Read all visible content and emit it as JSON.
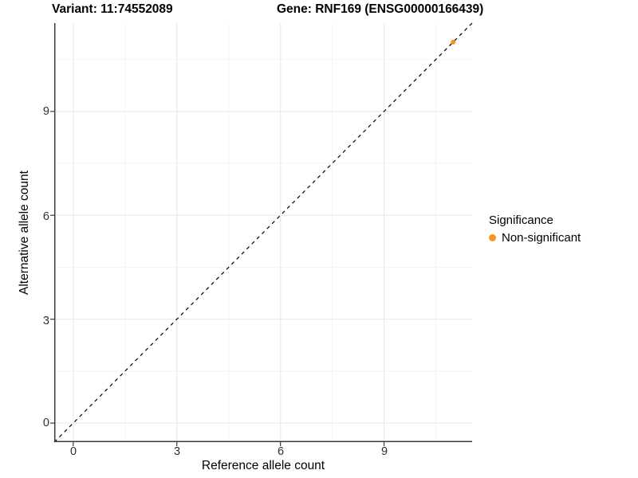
{
  "titles": {
    "variant": "Variant: 11:74552089",
    "gene": "Gene: RNF169 (ENSG00000166439)"
  },
  "axes": {
    "x_label": "Reference allele count",
    "y_label": "Alternative allele count"
  },
  "legend": {
    "title": "Significance",
    "items": [
      {
        "label": "Non-significant",
        "color": "#F7941E"
      }
    ]
  },
  "chart_data": {
    "type": "scatter",
    "title": "Variant: 11:74552089   Gene: RNF169 (ENSG00000166439)",
    "xlabel": "Reference allele count",
    "ylabel": "Alternative allele count",
    "xlim": [
      -0.55,
      11.55
    ],
    "ylim": [
      -0.55,
      11.55
    ],
    "x_ticks": [
      0,
      3,
      6,
      9
    ],
    "y_ticks": [
      0,
      3,
      6,
      9
    ],
    "minor_ticks": [
      1.5,
      4.5,
      7.5,
      10.5
    ],
    "grid": true,
    "legend_position": "right",
    "identity_line": {
      "style": "dashed",
      "color": "#000000",
      "from": [
        -0.55,
        -0.55
      ],
      "to": [
        11.55,
        11.55
      ]
    },
    "series": [
      {
        "name": "Non-significant",
        "color": "#F7941E",
        "points": [
          {
            "x": 11,
            "y": 11
          }
        ]
      }
    ],
    "colors": {
      "major_grid": "#E9E9E9",
      "minor_grid": "#F3F3F3",
      "axis_line": "#3a3a3a",
      "point": "#F7941E"
    }
  }
}
